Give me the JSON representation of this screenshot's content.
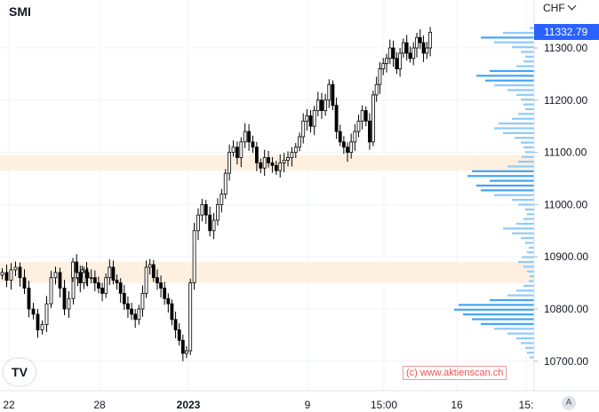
{
  "header": {
    "symbol": "SMI",
    "currency": "CHF",
    "last_price": "11332.79"
  },
  "watermark": "(c) www.aktienscan.ch",
  "logo": {
    "icon": "tradingview-logo-icon",
    "text": "TV"
  },
  "auto_scale_button": "A",
  "colors": {
    "grid": "#f0f3fa",
    "candle": "#000000",
    "volume_profile": "#42a5f5",
    "volume_profile_light": "#90caf9",
    "zone": "#fdf0e0",
    "last_price_bg": "#2962ff",
    "watermark": "#ef5350"
  },
  "chart_data": {
    "type": "candlestick",
    "title": "SMI",
    "price_axis": {
      "range": [
        10670,
        11370
      ],
      "ticks": [
        11300,
        11200,
        11100,
        11000,
        10900,
        10800,
        10700
      ],
      "tick_labels": [
        "11300.00",
        "11200.00",
        "11100.00",
        "11000.00",
        "10900.00",
        "10800.00",
        "10700.00"
      ]
    },
    "time_axis": {
      "labels": [
        "22",
        "28",
        "2023",
        "9",
        "15:00",
        "16",
        "15:"
      ]
    },
    "zones": [
      {
        "from": 11065,
        "to": 11095
      },
      {
        "from": 10850,
        "to": 10890
      }
    ],
    "last_close": 11332.79,
    "grid": true,
    "segments": [
      {
        "label": "22",
        "closes": [
          10870,
          10855,
          10875,
          10880,
          10860,
          10840,
          10800,
          10790,
          10760,
          10770,
          10810,
          10860,
          10870,
          10840,
          10800,
          10820,
          10860,
          10870,
          10875,
          10860
        ]
      },
      {
        "label": "28",
        "closes": [
          10890,
          10870,
          10850,
          10870,
          10860,
          10860,
          10850,
          10840,
          10830,
          10860,
          10880,
          10855,
          10850,
          10830,
          10810,
          10800,
          10790,
          10780,
          10800,
          10830,
          10880,
          10885,
          10860,
          10850,
          10840,
          10820,
          10810,
          10780,
          10760,
          10740,
          10715,
          10720
        ]
      },
      {
        "label": "2023",
        "closes": [
          10850,
          10950,
          10980,
          11000,
          10980,
          10950,
          10970,
          11000,
          11020,
          11060,
          11100,
          11110,
          11090,
          11120,
          11140,
          11120,
          11110,
          11080,
          11070,
          11090,
          11080,
          11075,
          11065,
          11080,
          11085,
          11090,
          11100,
          11110
        ]
      },
      {
        "label": "9",
        "closes": [
          11130,
          11160,
          11170,
          11150,
          11180,
          11200,
          11180,
          11200,
          11230,
          11190,
          11140,
          11120,
          11110,
          11100,
          11120,
          11140,
          11160,
          11180,
          11160,
          11120
        ]
      },
      {
        "label": "15:00",
        "closes": [
          11210,
          11230,
          11260,
          11270,
          11280,
          11300,
          11280,
          11260,
          11290,
          11310,
          11290,
          11280,
          11300,
          11320,
          11310,
          11290,
          11300,
          11330
        ]
      }
    ],
    "volume_profile": [
      5,
      35,
      60,
      45,
      25,
      15,
      10,
      12,
      20,
      50,
      65,
      55,
      45,
      30,
      20,
      15,
      12,
      10,
      18,
      25,
      40,
      45,
      35,
      22,
      15,
      12,
      10,
      14,
      18,
      30,
      70,
      75,
      50,
      65,
      60,
      45,
      25,
      18,
      10,
      8,
      12,
      20,
      35,
      25,
      15,
      10,
      6,
      8,
      14,
      18,
      12,
      8,
      5,
      6,
      12,
      20,
      30,
      50,
      85,
      90,
      80,
      70,
      60,
      45,
      30,
      20,
      15,
      10,
      8,
      5
    ]
  }
}
